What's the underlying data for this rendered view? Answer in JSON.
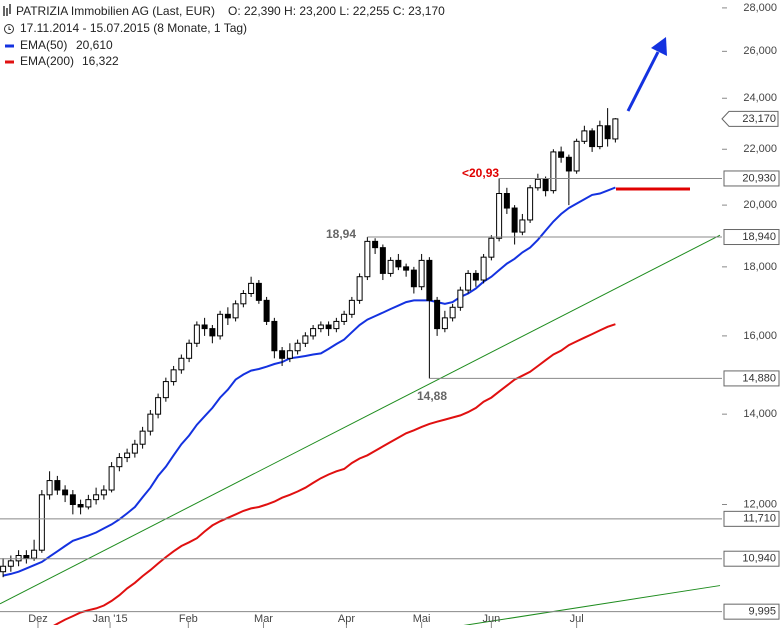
{
  "chart_data": {
    "type": "candlestick",
    "title": "PATRIZIA Immobilien AG (Last, EUR)",
    "quote": "O: 22,390  H: 23,200  L: 22,255  C: 23,170",
    "subtitle": "17.11.2014 - 15.07.2015 (8 Monate, 1 Tag)",
    "log_scale": true,
    "xlim": [
      -0.4,
      92.5
    ],
    "ylim": [
      9.77,
      28.38
    ],
    "xticks": [
      {
        "value": 4.5,
        "label": "Dez"
      },
      {
        "value": 13.8,
        "label": "Jan '15"
      },
      {
        "value": 23.9,
        "label": "Feb"
      },
      {
        "value": 33.6,
        "label": "Mar"
      },
      {
        "value": 44.3,
        "label": "Apr"
      },
      {
        "value": 54,
        "label": "Mai"
      },
      {
        "value": 63,
        "label": "Jun"
      },
      {
        "value": 74,
        "label": "Jul"
      }
    ],
    "yticks": [
      {
        "value": 28,
        "label": "28,000"
      },
      {
        "value": 26,
        "label": "26,000"
      },
      {
        "value": 24,
        "label": "24,000"
      },
      {
        "value": 22,
        "label": "22,000"
      },
      {
        "value": 20,
        "label": "20,000"
      },
      {
        "value": 18,
        "label": "18,000"
      },
      {
        "value": 16,
        "label": "16,000"
      },
      {
        "value": 14,
        "label": "14,000"
      },
      {
        "value": 12,
        "label": "12,000"
      }
    ],
    "candles": [
      [
        10.7,
        10.95,
        10.6,
        10.8
      ],
      [
        10.8,
        11.0,
        10.7,
        10.9
      ],
      [
        10.9,
        11.1,
        10.8,
        11.0
      ],
      [
        11.0,
        11.1,
        10.85,
        10.95
      ],
      [
        10.95,
        11.3,
        10.9,
        11.1
      ],
      [
        11.1,
        12.3,
        11.05,
        12.2
      ],
      [
        12.2,
        12.7,
        12.1,
        12.5
      ],
      [
        12.5,
        12.6,
        12.2,
        12.3
      ],
      [
        12.3,
        12.4,
        12.05,
        12.2
      ],
      [
        12.2,
        12.3,
        11.8,
        12.0
      ],
      [
        12.0,
        12.1,
        11.8,
        11.95
      ],
      [
        11.95,
        12.2,
        11.9,
        12.1
      ],
      [
        12.1,
        12.35,
        12.0,
        12.2
      ],
      [
        12.2,
        12.4,
        12.1,
        12.3
      ],
      [
        12.3,
        12.9,
        12.25,
        12.8
      ],
      [
        12.8,
        13.1,
        12.7,
        13.0
      ],
      [
        13.0,
        13.2,
        12.9,
        13.1
      ],
      [
        13.1,
        13.4,
        13.0,
        13.3
      ],
      [
        13.3,
        13.7,
        13.2,
        13.6
      ],
      [
        13.6,
        14.1,
        13.5,
        14.0
      ],
      [
        14.0,
        14.5,
        13.9,
        14.4
      ],
      [
        14.4,
        14.9,
        14.3,
        14.8
      ],
      [
        14.8,
        15.2,
        14.7,
        15.1
      ],
      [
        15.1,
        15.5,
        15.0,
        15.4
      ],
      [
        15.4,
        15.9,
        15.3,
        15.8
      ],
      [
        15.8,
        16.4,
        15.7,
        16.3
      ],
      [
        16.3,
        16.5,
        16.0,
        16.2
      ],
      [
        16.2,
        16.3,
        15.8,
        16.0
      ],
      [
        16.0,
        16.7,
        15.9,
        16.6
      ],
      [
        16.6,
        16.8,
        16.3,
        16.5
      ],
      [
        16.5,
        17.0,
        16.4,
        16.9
      ],
      [
        16.9,
        17.3,
        16.8,
        17.2
      ],
      [
        17.2,
        17.7,
        17.1,
        17.5
      ],
      [
        17.5,
        17.6,
        16.9,
        17.0
      ],
      [
        17.0,
        17.1,
        16.3,
        16.4
      ],
      [
        16.4,
        16.5,
        15.4,
        15.6
      ],
      [
        15.6,
        15.7,
        15.2,
        15.4
      ],
      [
        15.4,
        15.8,
        15.3,
        15.6
      ],
      [
        15.6,
        15.9,
        15.5,
        15.8
      ],
      [
        15.8,
        16.1,
        15.7,
        16.0
      ],
      [
        16.0,
        16.3,
        15.9,
        16.2
      ],
      [
        16.2,
        16.4,
        16.1,
        16.3
      ],
      [
        16.3,
        16.4,
        16.0,
        16.2
      ],
      [
        16.2,
        16.5,
        16.1,
        16.4
      ],
      [
        16.4,
        16.7,
        16.3,
        16.6
      ],
      [
        16.6,
        17.1,
        16.5,
        17.0
      ],
      [
        17.0,
        17.8,
        16.9,
        17.7
      ],
      [
        17.7,
        18.94,
        17.6,
        18.8
      ],
      [
        18.8,
        18.9,
        18.4,
        18.6
      ],
      [
        18.6,
        18.7,
        17.6,
        17.8
      ],
      [
        17.8,
        18.3,
        17.7,
        18.2
      ],
      [
        18.2,
        18.4,
        17.9,
        18.0
      ],
      [
        18.0,
        18.1,
        17.7,
        17.9
      ],
      [
        17.9,
        18.0,
        17.2,
        17.4
      ],
      [
        17.4,
        18.4,
        17.3,
        18.2
      ],
      [
        18.2,
        18.3,
        14.88,
        17.0
      ],
      [
        17.0,
        17.1,
        16.0,
        16.2
      ],
      [
        16.2,
        16.7,
        16.1,
        16.5
      ],
      [
        16.5,
        16.9,
        16.4,
        16.8
      ],
      [
        16.8,
        17.4,
        16.7,
        17.3
      ],
      [
        17.3,
        17.9,
        17.2,
        17.8
      ],
      [
        17.8,
        17.9,
        17.4,
        17.6
      ],
      [
        17.6,
        18.4,
        17.5,
        18.3
      ],
      [
        18.3,
        19.0,
        18.2,
        18.9
      ],
      [
        18.9,
        20.93,
        18.8,
        20.4
      ],
      [
        20.4,
        20.6,
        19.7,
        19.9
      ],
      [
        19.9,
        20.0,
        18.7,
        19.1
      ],
      [
        19.1,
        19.7,
        19.0,
        19.5
      ],
      [
        19.5,
        20.7,
        19.4,
        20.6
      ],
      [
        20.6,
        21.1,
        20.5,
        20.9
      ],
      [
        20.9,
        21.0,
        20.3,
        20.5
      ],
      [
        20.5,
        22.0,
        20.4,
        21.9
      ],
      [
        21.9,
        22.1,
        21.5,
        21.7
      ],
      [
        21.7,
        21.8,
        20.0,
        21.2
      ],
      [
        21.2,
        22.4,
        21.1,
        22.3
      ],
      [
        22.3,
        22.9,
        22.2,
        22.7
      ],
      [
        22.7,
        22.8,
        21.9,
        22.1
      ],
      [
        22.1,
        23.1,
        22.0,
        22.9
      ],
      [
        22.9,
        23.6,
        22.1,
        22.4
      ],
      [
        22.39,
        23.2,
        22.255,
        23.17
      ]
    ],
    "series": [
      {
        "name": "EMA(50)",
        "color": "#1432e0",
        "legend_value": "20,610",
        "values": [
          10.63,
          10.66,
          10.7,
          10.76,
          10.82,
          10.88,
          10.98,
          11.08,
          11.18,
          11.28,
          11.33,
          11.38,
          11.44,
          11.52,
          11.6,
          11.7,
          11.82,
          11.95,
          12.15,
          12.35,
          12.6,
          12.8,
          13.05,
          13.3,
          13.5,
          13.75,
          13.95,
          14.15,
          14.4,
          14.6,
          14.85,
          14.98,
          15.08,
          15.12,
          15.18,
          15.25,
          15.3,
          15.4,
          15.43,
          15.46,
          15.5,
          15.53,
          15.65,
          15.78,
          15.9,
          16.1,
          16.3,
          16.45,
          16.55,
          16.65,
          16.75,
          16.85,
          16.95,
          17.0,
          17.0,
          17.0,
          16.95,
          16.9,
          16.95,
          17.1,
          17.2,
          17.35,
          17.55,
          17.7,
          17.9,
          18.1,
          18.25,
          18.45,
          18.6,
          18.85,
          19.15,
          19.45,
          19.7,
          19.9,
          20.05,
          20.2,
          20.35,
          20.4,
          20.5,
          20.61
        ]
      },
      {
        "name": "EMA(200)",
        "color": "#e01010",
        "legend_value": "16,322",
        "values": [
          null,
          null,
          null,
          null,
          null,
          null,
          9.72,
          9.79,
          9.86,
          9.92,
          9.98,
          10.02,
          10.05,
          10.1,
          10.18,
          10.28,
          10.4,
          10.5,
          10.62,
          10.73,
          10.85,
          10.97,
          11.08,
          11.18,
          11.25,
          11.33,
          11.46,
          11.58,
          11.66,
          11.73,
          11.8,
          11.87,
          11.92,
          11.95,
          12.0,
          12.06,
          12.14,
          12.2,
          12.27,
          12.35,
          12.45,
          12.55,
          12.63,
          12.7,
          12.75,
          12.88,
          12.98,
          13.05,
          13.15,
          13.25,
          13.35,
          13.45,
          13.55,
          13.62,
          13.7,
          13.77,
          13.82,
          13.87,
          13.92,
          13.97,
          14.05,
          14.15,
          14.3,
          14.4,
          14.55,
          14.7,
          14.85,
          14.95,
          15.05,
          15.2,
          15.35,
          15.5,
          15.6,
          15.75,
          15.85,
          15.95,
          16.05,
          16.15,
          16.25,
          16.322
        ]
      }
    ],
    "trendlines": [
      {
        "color": "#1e8c1e",
        "x": [
          -0.4,
          92.5
        ],
        "y": [
          10.13,
          19.0
        ]
      },
      {
        "color": "#1e8c1e",
        "x": [
          53.8,
          92.5
        ],
        "y": [
          9.65,
          10.45
        ]
      }
    ],
    "levels": [
      {
        "value": 20.93,
        "label": "20,930"
      },
      {
        "value": 18.94,
        "label": "18,940"
      },
      {
        "value": 14.88,
        "label": "14,880"
      },
      {
        "value": 11.71,
        "label": "11,710"
      },
      {
        "value": 10.94,
        "label": "10,940"
      },
      {
        "value": 9.995,
        "label": "9,995"
      }
    ],
    "last_price": {
      "value": 23.17,
      "label": "23,170"
    },
    "annotations": [
      "18,94",
      "14,88",
      "<20,93"
    ]
  }
}
